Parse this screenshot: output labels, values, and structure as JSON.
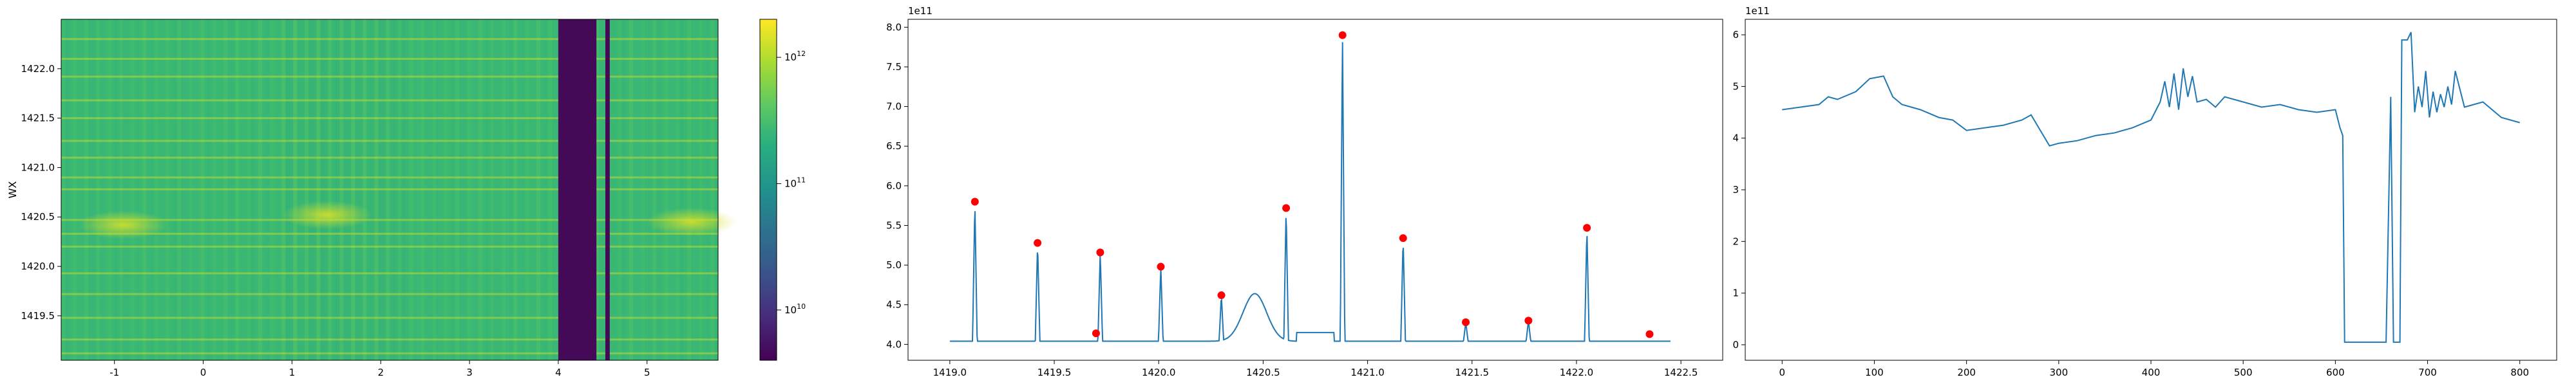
{
  "chart_data": [
    {
      "type": "heatmap",
      "ylabel": "WX",
      "x_range": [
        -1.6,
        5.8
      ],
      "y_range": [
        1419.05,
        1422.5
      ],
      "xticks": [
        "-1",
        "0",
        "1",
        "2",
        "3",
        "4",
        "5"
      ],
      "yticks": [
        "1419.5",
        "1420.0",
        "1420.5",
        "1421.0",
        "1421.5",
        "1422.0"
      ],
      "colorscale": "viridis",
      "color_scale_type": "log",
      "colorbar_range": [
        4000000000.0,
        2000000000000.0
      ],
      "colorbar_ticks": [
        "10^10",
        "10^11",
        "10^12"
      ],
      "colorbar_tick_values": [
        10000000000.0,
        100000000000.0,
        1000000000000.0
      ],
      "colors": {
        "base": "#3bba73",
        "dark": "#450a57",
        "bright": "#d6e02a"
      },
      "dark_bands": [
        [
          4.0,
          4.43
        ],
        [
          4.53,
          4.58
        ]
      ],
      "bright_rows": [
        1419.12,
        1419.26,
        1419.48,
        1419.72,
        1419.93,
        1420.2,
        1420.33,
        1420.47,
        1420.78,
        1420.9,
        1421.1,
        1421.27,
        1421.5,
        1421.68,
        1421.92,
        1422.1,
        1422.3
      ],
      "hot_spots": [
        [
          -0.9,
          1420.42
        ],
        [
          1.4,
          1420.52
        ],
        [
          5.5,
          1420.45
        ]
      ],
      "grid": false
    },
    {
      "type": "line",
      "x_range": [
        1418.8,
        1422.7
      ],
      "y_range": [
        3.8,
        8.1
      ],
      "xticks": [
        "1419.0",
        "1419.5",
        "1420.0",
        "1420.5",
        "1421.0",
        "1421.5",
        "1422.0",
        "1422.5"
      ],
      "yticks": [
        "4.0",
        "4.5",
        "5.0",
        "5.5",
        "6.0",
        "6.5",
        "7.0",
        "7.5",
        "8.0"
      ],
      "y_offset_label": "1e11",
      "baseline": 4.04,
      "x_start": 1419.0,
      "x_end": 1422.45,
      "peaks": [
        [
          1419.12,
          5.8
        ],
        [
          1419.42,
          5.28
        ],
        [
          1419.72,
          5.16
        ],
        [
          1420.01,
          4.98
        ],
        [
          1420.3,
          4.62
        ],
        [
          1420.61,
          5.72
        ],
        [
          1420.88,
          7.9
        ],
        [
          1421.17,
          5.34
        ],
        [
          1421.47,
          4.28
        ],
        [
          1421.77,
          4.3
        ],
        [
          1422.05,
          5.47
        ]
      ],
      "bump": {
        "center": 1420.46,
        "width": 0.08,
        "height": 0.6
      },
      "shelf": {
        "start": 1420.66,
        "end": 1420.84,
        "value": 4.15
      },
      "markers": {
        "x": [
          1419.12,
          1419.42,
          1419.7,
          1419.72,
          1420.01,
          1420.3,
          1420.61,
          1420.88,
          1421.17,
          1421.47,
          1421.77,
          1422.05,
          1422.35
        ],
        "y": [
          5.8,
          5.28,
          4.14,
          5.16,
          4.98,
          4.62,
          5.72,
          7.9,
          5.34,
          4.28,
          4.3,
          5.47,
          4.13
        ]
      },
      "colors": {
        "line": "#1f77b4",
        "marker": "#ff0000"
      },
      "grid": false
    },
    {
      "type": "line",
      "x_range": [
        -40,
        840
      ],
      "y_range": [
        -0.3,
        6.3
      ],
      "xticks": [
        "0",
        "100",
        "200",
        "300",
        "400",
        "500",
        "600",
        "700",
        "800"
      ],
      "yticks": [
        "0",
        "1",
        "2",
        "3",
        "4",
        "5",
        "6"
      ],
      "y_offset_label": "1e11",
      "x": [
        0,
        20,
        40,
        50,
        60,
        80,
        95,
        110,
        120,
        130,
        150,
        170,
        185,
        200,
        220,
        240,
        260,
        270,
        280,
        290,
        300,
        320,
        340,
        360,
        380,
        400,
        410,
        415,
        420,
        425,
        430,
        435,
        440,
        445,
        450,
        460,
        470,
        480,
        500,
        520,
        540,
        560,
        580,
        600,
        605,
        608,
        610,
        620,
        640,
        655,
        660,
        663,
        670,
        672,
        678,
        682,
        686,
        690,
        694,
        698,
        702,
        706,
        710,
        714,
        718,
        722,
        726,
        730,
        740,
        760,
        780,
        800
      ],
      "y": [
        4.55,
        4.6,
        4.65,
        4.8,
        4.75,
        4.9,
        5.15,
        5.2,
        4.8,
        4.65,
        4.55,
        4.4,
        4.35,
        4.15,
        4.2,
        4.25,
        4.35,
        4.45,
        4.15,
        3.85,
        3.9,
        3.95,
        4.05,
        4.1,
        4.2,
        4.35,
        4.7,
        5.1,
        4.6,
        5.25,
        4.55,
        5.35,
        4.8,
        5.2,
        4.7,
        4.75,
        4.6,
        4.8,
        4.7,
        4.6,
        4.65,
        4.55,
        4.5,
        4.55,
        4.2,
        4.05,
        0.05,
        0.05,
        0.05,
        0.05,
        4.8,
        0.05,
        0.05,
        5.9,
        5.9,
        6.05,
        4.5,
        5.0,
        4.6,
        5.3,
        4.4,
        4.9,
        4.5,
        4.85,
        4.6,
        5.0,
        4.65,
        5.3,
        4.6,
        4.7,
        4.4,
        4.3
      ],
      "colors": {
        "line": "#1f77b4"
      },
      "grid": false
    }
  ]
}
